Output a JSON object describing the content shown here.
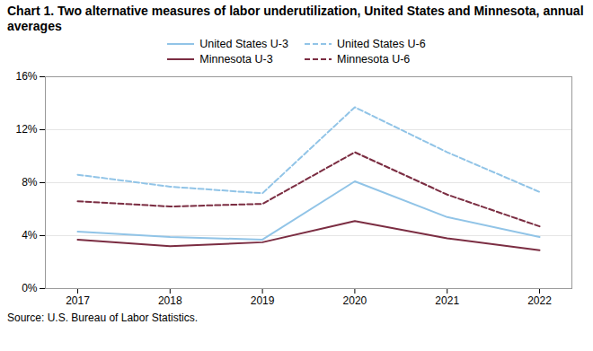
{
  "chart_data": {
    "type": "line",
    "title": "Chart 1. Two alternative measures of labor underutilization, United States and Minnesota, annual averages",
    "source": "Source: U.S. Bureau of Labor Statistics.",
    "x": [
      2017,
      2018,
      2019,
      2020,
      2021,
      2022
    ],
    "series": [
      {
        "name": "United States U-3",
        "color": "#91C4E7",
        "line_style": "solid",
        "values": [
          4.3,
          3.9,
          3.7,
          8.1,
          5.4,
          3.9
        ]
      },
      {
        "name": "United States U-6",
        "color": "#91C4E7",
        "line_style": "dashed",
        "values": [
          8.6,
          7.7,
          7.2,
          13.7,
          10.3,
          7.3
        ]
      },
      {
        "name": "Minnesota U-3",
        "color": "#7B2D42",
        "line_style": "solid",
        "values": [
          3.7,
          3.2,
          3.5,
          5.1,
          3.8,
          2.9
        ]
      },
      {
        "name": "Minnesota U-6",
        "color": "#7B2D42",
        "line_style": "dashed",
        "values": [
          6.6,
          6.2,
          6.4,
          10.3,
          7.1,
          4.7
        ]
      }
    ],
    "xlim": [
      2016.65,
      2022.35
    ],
    "xticks": [
      2017,
      2018,
      2019,
      2020,
      2021,
      2022
    ],
    "ylim": [
      0,
      16
    ],
    "yticks": [
      {
        "value": 0,
        "label": "0%"
      },
      {
        "value": 4,
        "label": "4%"
      },
      {
        "value": 8,
        "label": "8%"
      },
      {
        "value": 12,
        "label": "12%"
      },
      {
        "value": 16,
        "label": "16%"
      }
    ],
    "grid": true,
    "legend": "top"
  }
}
